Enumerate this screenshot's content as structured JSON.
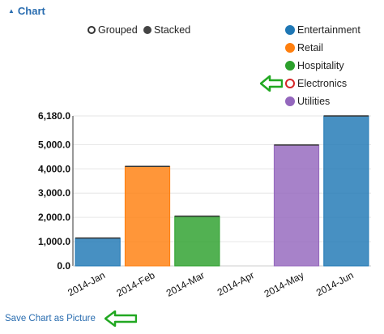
{
  "header": {
    "title": "Chart",
    "caret_icon": "caret-up-icon"
  },
  "mode_toggle": {
    "grouped_label": "Grouped",
    "stacked_label": "Stacked",
    "selected": "stacked"
  },
  "save_link": {
    "label": "Save Chart as Picture"
  },
  "colors": {
    "Entertainment": "#1f77b4",
    "Retail": "#ff7f0e",
    "Hospitality": "#2ca02c",
    "Electronics": "#d62728",
    "Utilities": "#9467bd",
    "callout_arrow": "#22a822"
  },
  "legend": [
    {
      "label": "Entertainment",
      "enabled": true
    },
    {
      "label": "Retail",
      "enabled": true
    },
    {
      "label": "Hospitality",
      "enabled": true
    },
    {
      "label": "Electronics",
      "enabled": false
    },
    {
      "label": "Utilities",
      "enabled": true
    }
  ],
  "chart_data": {
    "type": "bar",
    "categories": [
      "2014-Jan",
      "2014-Feb",
      "2014-Mar",
      "2014-Apr",
      "2014-May",
      "2014-Jun"
    ],
    "series": [
      {
        "name": "Entertainment",
        "values": [
          1150,
          0,
          0,
          0,
          0,
          6180
        ]
      },
      {
        "name": "Retail",
        "values": [
          0,
          4100,
          0,
          0,
          0,
          0
        ]
      },
      {
        "name": "Hospitality",
        "values": [
          0,
          0,
          2050,
          0,
          0,
          0
        ]
      },
      {
        "name": "Electronics",
        "values": [
          0,
          0,
          0,
          0,
          0,
          0
        ]
      },
      {
        "name": "Utilities",
        "values": [
          0,
          0,
          0,
          0,
          4980,
          0
        ]
      }
    ],
    "bar_series": [
      "Entertainment",
      "Retail",
      "Hospitality",
      "Electronics",
      "Utilities",
      "Entertainment"
    ],
    "bar_values": [
      1150,
      4100,
      2050,
      0,
      4980,
      6180
    ],
    "yticks": [
      "0.0",
      "1,000.0",
      "2,000.0",
      "3,000.0",
      "4,000.0",
      "5,000.0",
      "6,180.0"
    ],
    "ytick_values": [
      0,
      1000,
      2000,
      3000,
      4000,
      5000,
      6180
    ],
    "ylim": [
      0,
      6180
    ],
    "grid": true,
    "legend_position": "top-right"
  }
}
